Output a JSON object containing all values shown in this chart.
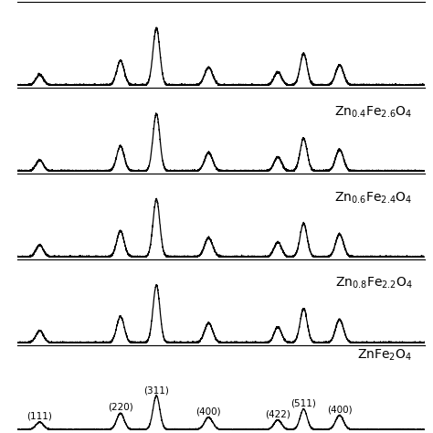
{
  "peak_positions": [
    18.3,
    30.2,
    35.5,
    43.2,
    53.4,
    57.2,
    62.5
  ],
  "peak_labels": [
    "(111)",
    "(220)",
    "(311)",
    "(400)",
    "(422)",
    "(511)",
    "(400)"
  ],
  "widths": [
    0.55,
    0.55,
    0.5,
    0.6,
    0.55,
    0.52,
    0.58
  ],
  "sample_peak_heights": [
    [
      0.22,
      0.48,
      1.0,
      0.36,
      0.28,
      0.6,
      0.42
    ],
    [
      0.2,
      0.44,
      0.96,
      0.33,
      0.26,
      0.57,
      0.39
    ],
    [
      0.19,
      0.42,
      0.93,
      0.31,
      0.24,
      0.54,
      0.37
    ],
    [
      0.17,
      0.39,
      0.9,
      0.29,
      0.22,
      0.51,
      0.34
    ],
    [
      0.16,
      0.37,
      0.87,
      0.27,
      0.2,
      0.48,
      0.31
    ]
  ],
  "panel_labels": [
    "",
    "Zn$_{0.4}$Fe$_{2.6}$O$_4$",
    "Zn$_{0.6}$Fe$_{2.4}$O$_4$",
    "Zn$_{0.8}$Fe$_{2.2}$O$_4$",
    "ZnFe$_2$O$_4$"
  ],
  "x_range": [
    15,
    75
  ],
  "noise_level": 0.008,
  "line_color": "#000000",
  "background_color": "#ffffff",
  "label_fontsize": 10,
  "peak_label_fontsize": 7.5,
  "linewidth": 0.9
}
